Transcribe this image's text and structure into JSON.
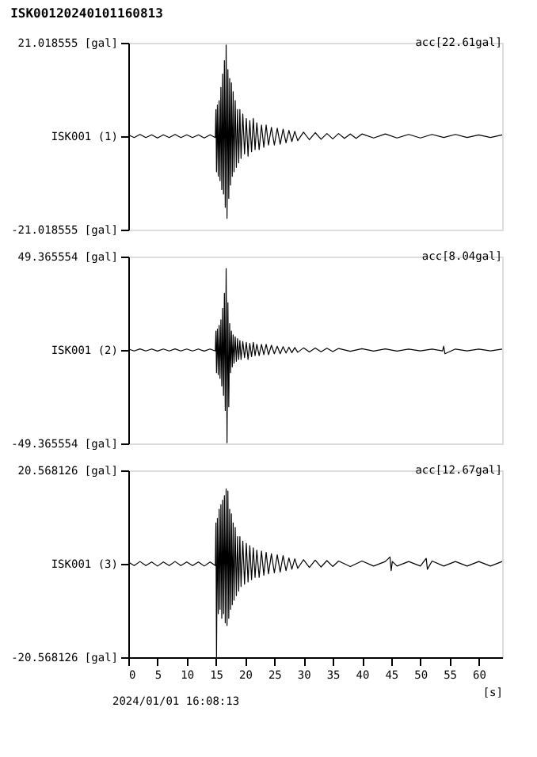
{
  "chart_data": [
    {
      "type": "line",
      "title": "ISK00120240101160813",
      "annotations": [
        "acc[22.61gal]"
      ],
      "xlim": [
        0,
        64
      ],
      "ylim": [
        -21.018555,
        21.018555
      ],
      "yticks": [
        {
          "value": 21.018555,
          "label": "21.018555 [gal]"
        },
        {
          "value": 0,
          "label": "ISK001 (1)"
        },
        {
          "value": -21.018555,
          "label": "-21.018555 [gal]"
        }
      ],
      "tick_labels": "y",
      "grid": false,
      "legend": false,
      "series": [
        {
          "color": "#000000",
          "x": [
            0,
            1,
            2,
            3,
            4,
            5,
            6,
            7,
            8,
            9,
            10,
            11,
            12,
            13,
            14,
            14.9,
            15.0,
            15.1,
            15.25,
            15.4,
            15.55,
            15.7,
            15.85,
            16.0,
            16.15,
            16.3,
            16.45,
            16.6,
            16.75,
            16.9,
            17.05,
            17.2,
            17.35,
            17.5,
            17.65,
            17.8,
            17.95,
            18.1,
            18.3,
            18.5,
            18.7,
            18.9,
            19.1,
            19.3,
            19.6,
            19.9,
            20.2,
            20.5,
            20.8,
            21.1,
            21.4,
            21.7,
            22,
            22.4,
            22.8,
            23.2,
            23.6,
            24,
            24.5,
            25,
            25.5,
            26,
            26.5,
            27,
            27.5,
            28,
            28.5,
            29,
            30,
            31,
            32,
            33,
            34,
            35,
            36,
            37,
            38,
            39,
            40,
            42,
            44,
            46,
            48,
            50,
            52,
            54,
            56,
            58,
            60,
            62,
            64
          ],
          "values": [
            0.3,
            -0.3,
            0.4,
            -0.3,
            0.3,
            -0.4,
            0.3,
            -0.3,
            0.4,
            -0.3,
            0.3,
            -0.3,
            0.3,
            -0.4,
            0.3,
            -0.3,
            6,
            -8,
            7,
            -9,
            8,
            -10,
            11,
            -12,
            14,
            -13,
            17,
            -16,
            20.5,
            -18.5,
            15,
            -14,
            13,
            -11,
            12,
            -9,
            10,
            -8,
            8,
            -7,
            6,
            -6,
            6,
            -5,
            5,
            -4,
            4,
            -4.5,
            3.5,
            -3.5,
            4,
            -3,
            3,
            -3,
            2.5,
            -2.5,
            2.5,
            -2,
            2,
            -2,
            1.8,
            -1.8,
            1.6,
            -1.5,
            1.3,
            -1.2,
            1.1,
            -1,
            0.9,
            -0.8,
            0.8,
            -0.7,
            0.6,
            -0.6,
            0.6,
            -0.5,
            0.5,
            -0.5,
            0.5,
            -0.4,
            0.5,
            -0.4,
            0.4,
            -0.4,
            0.4,
            -0.3,
            0.4,
            -0.3,
            0.3,
            -0.3,
            0.3
          ]
        }
      ]
    },
    {
      "type": "line",
      "annotations": [
        "acc[8.04gal]"
      ],
      "xlim": [
        0,
        64
      ],
      "ylim": [
        -49.365554,
        49.365554
      ],
      "yticks": [
        {
          "value": 49.365554,
          "label": "49.365554 [gal]"
        },
        {
          "value": 0,
          "label": "ISK001 (2)"
        },
        {
          "value": -49.365554,
          "label": "-49.365554 [gal]"
        }
      ],
      "tick_labels": "y",
      "grid": false,
      "legend": false,
      "series": [
        {
          "color": "#000000",
          "x": [
            0,
            1,
            2,
            3,
            4,
            5,
            6,
            7,
            8,
            9,
            10,
            11,
            12,
            13,
            14,
            14.9,
            15.0,
            15.1,
            15.25,
            15.4,
            15.55,
            15.7,
            15.85,
            16.0,
            16.15,
            16.3,
            16.45,
            16.6,
            16.75,
            16.9,
            17.05,
            17.2,
            17.35,
            17.5,
            17.65,
            17.8,
            17.95,
            18.1,
            18.3,
            18.5,
            18.7,
            18.9,
            19.1,
            19.3,
            19.6,
            19.9,
            20.2,
            20.5,
            20.8,
            21.1,
            21.4,
            21.7,
            22,
            22.4,
            22.8,
            23.2,
            23.6,
            24,
            24.5,
            25,
            25.5,
            26,
            26.5,
            27,
            27.5,
            28,
            28.5,
            29,
            30,
            31,
            32,
            33,
            34,
            35,
            36,
            38,
            40,
            42,
            44,
            46,
            48,
            50,
            52,
            53.8,
            54,
            54.2,
            56,
            58,
            60,
            62,
            64
          ],
          "values": [
            0.5,
            -0.5,
            0.6,
            -0.5,
            0.5,
            -0.6,
            0.5,
            -0.5,
            0.6,
            -0.5,
            0.5,
            -0.5,
            0.5,
            -0.6,
            0.5,
            -0.5,
            10,
            -12,
            11,
            -13,
            13,
            -15,
            16,
            -19,
            22,
            -24,
            30,
            -32,
            43,
            -49,
            25,
            -30,
            14,
            -12,
            10,
            -9,
            8,
            -7,
            7,
            -6,
            6,
            -5,
            5,
            -5,
            4.5,
            -4,
            4,
            -5,
            3.5,
            -3.5,
            4,
            -3,
            3,
            -3,
            3,
            -2.5,
            3,
            -2.5,
            2.5,
            -2,
            2,
            -2,
            1.8,
            -1.6,
            1.5,
            -1.4,
            1.3,
            -1.2,
            1.1,
            -1,
            1,
            -0.9,
            0.9,
            -0.8,
            0.8,
            -0.7,
            0.7,
            -0.6,
            0.6,
            -0.6,
            0.5,
            -0.5,
            0.5,
            -0.5,
            2,
            -2,
            0.5,
            -0.5,
            0.5,
            -0.5,
            0.5
          ]
        }
      ]
    },
    {
      "type": "line",
      "annotations": [
        "acc[12.67gal]",
        "2024/01/01 16:08:13"
      ],
      "xlabel": "[s]",
      "xlim": [
        0,
        64
      ],
      "ylim": [
        -20.568126,
        20.568126
      ],
      "xticks": [
        0,
        5,
        10,
        15,
        20,
        25,
        30,
        35,
        40,
        45,
        50,
        55,
        60
      ],
      "yticks": [
        {
          "value": 20.568126,
          "label": "20.568126 [gal]"
        },
        {
          "value": 0,
          "label": "ISK001 (3)"
        },
        {
          "value": -20.568126,
          "label": "-20.568126 [gal]"
        }
      ],
      "grid": false,
      "legend": false,
      "series": [
        {
          "color": "#000000",
          "x": [
            0,
            1,
            2,
            3,
            4,
            5,
            6,
            7,
            8,
            9,
            10,
            11,
            12,
            13,
            14,
            14.9,
            15.0,
            15.1,
            15.25,
            15.4,
            15.55,
            15.7,
            15.85,
            16.0,
            16.15,
            16.3,
            16.45,
            16.6,
            16.75,
            16.9,
            17.05,
            17.2,
            17.35,
            17.5,
            17.65,
            17.8,
            17.95,
            18.1,
            18.3,
            18.5,
            18.7,
            18.9,
            19.1,
            19.3,
            19.6,
            19.9,
            20.2,
            20.5,
            20.8,
            21.1,
            21.4,
            21.7,
            22,
            22.4,
            22.8,
            23.2,
            23.6,
            24,
            24.5,
            25,
            25.5,
            26,
            26.5,
            27,
            27.5,
            28,
            28.5,
            29,
            30,
            31,
            32,
            33,
            34,
            35,
            36,
            38,
            40,
            42,
            44,
            44.8,
            45,
            45.2,
            46,
            48,
            50,
            51,
            51.2,
            52,
            54,
            56,
            58,
            60,
            62,
            64
          ],
          "values": [
            0.4,
            -0.4,
            0.5,
            -0.4,
            0.4,
            -0.5,
            0.4,
            -0.4,
            0.5,
            -0.4,
            0.4,
            -0.4,
            0.4,
            -0.5,
            0.4,
            -0.4,
            9,
            -20.5,
            10,
            -11,
            12,
            -10,
            13,
            -12,
            14,
            -11,
            15,
            -13,
            16.5,
            -13.6,
            16,
            -12,
            12,
            -10,
            11,
            -9,
            9,
            -8,
            8,
            -7,
            6,
            -6,
            6,
            -5,
            5,
            -4.5,
            4.5,
            -4,
            4,
            -3.5,
            3.5,
            -3,
            3,
            -3,
            2.8,
            -2.5,
            2.5,
            -2.2,
            2.2,
            -2,
            2,
            -1.8,
            1.8,
            -1.5,
            1.3,
            -1.2,
            1.1,
            -1,
            0.9,
            -0.8,
            0.8,
            -0.7,
            0.7,
            -0.6,
            0.6,
            -0.6,
            0.6,
            -0.5,
            0.5,
            1.5,
            -1.5,
            0.5,
            -0.5,
            0.5,
            -0.5,
            1.2,
            -1.2,
            0.6,
            -0.5,
            0.5,
            -0.5,
            0.5,
            -0.5,
            0.5
          ]
        }
      ]
    }
  ]
}
